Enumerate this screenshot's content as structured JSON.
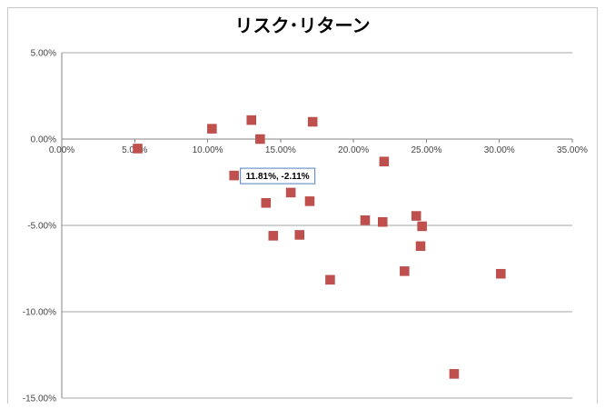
{
  "chart_data": {
    "type": "scatter",
    "title": "リスク･リターン",
    "xlabel": "",
    "ylabel": "",
    "xlim": [
      0,
      35
    ],
    "ylim": [
      -15,
      5
    ],
    "x_ticks": [
      0,
      5,
      10,
      15,
      20,
      25,
      30,
      35
    ],
    "y_ticks": [
      5,
      0,
      -5,
      -10,
      -15
    ],
    "x_tick_labels": [
      "0.00%",
      "5.00%",
      "10.00%",
      "15.00%",
      "20.00%",
      "25.00%",
      "30.00%",
      "35.00%"
    ],
    "y_tick_labels": [
      "5.00%",
      "0.00%",
      "-5.00%",
      "-10.00%",
      "-15.00%"
    ],
    "grid": {
      "horizontal": true,
      "vertical": false
    },
    "legend": "none",
    "marker": {
      "shape": "square",
      "color": "#c0504d"
    },
    "points": [
      {
        "x": 5.2,
        "y": -0.55
      },
      {
        "x": 10.3,
        "y": 0.6
      },
      {
        "x": 11.81,
        "y": -2.11
      },
      {
        "x": 13.0,
        "y": 1.1
      },
      {
        "x": 13.6,
        "y": 0.0
      },
      {
        "x": 14.0,
        "y": -3.7
      },
      {
        "x": 14.5,
        "y": -5.6
      },
      {
        "x": 15.7,
        "y": -3.1
      },
      {
        "x": 16.3,
        "y": -5.55
      },
      {
        "x": 17.0,
        "y": -3.6
      },
      {
        "x": 17.2,
        "y": 1.0
      },
      {
        "x": 18.4,
        "y": -8.15
      },
      {
        "x": 20.8,
        "y": -4.7
      },
      {
        "x": 22.0,
        "y": -4.8
      },
      {
        "x": 22.1,
        "y": -1.3
      },
      {
        "x": 23.5,
        "y": -7.65
      },
      {
        "x": 24.3,
        "y": -4.45
      },
      {
        "x": 24.6,
        "y": -6.2
      },
      {
        "x": 24.7,
        "y": -5.05
      },
      {
        "x": 26.9,
        "y": -13.6
      },
      {
        "x": 30.1,
        "y": -7.8
      }
    ],
    "annotation": {
      "text": "11.81%, -2.11%",
      "x": 11.81,
      "y": -2.11
    }
  }
}
